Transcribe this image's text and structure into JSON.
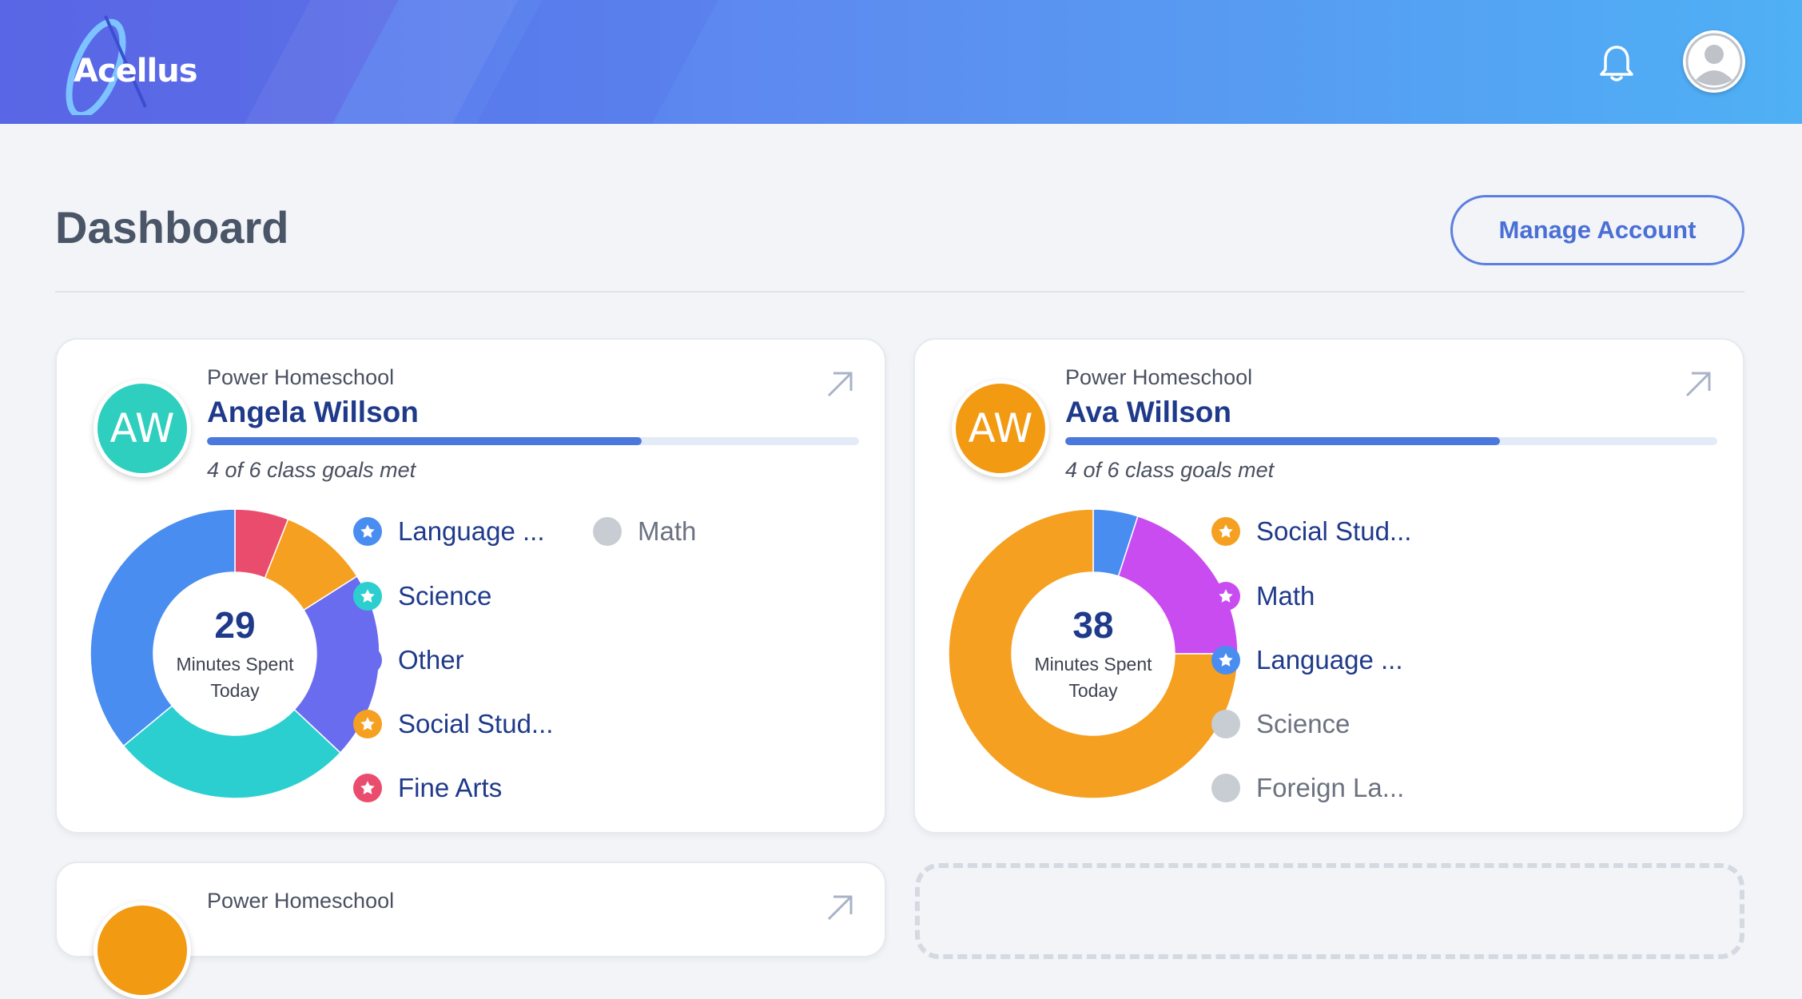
{
  "header": {
    "logo_text": "Acellus",
    "notifications_icon": "bell-icon",
    "user_icon": "user-avatar-icon",
    "colors": {
      "gradient_start": "#5a72ea",
      "gradient_end": "#4fb0f5"
    }
  },
  "page": {
    "title": "Dashboard",
    "manage_account_label": "Manage Account"
  },
  "cards": [
    {
      "school": "Power Homeschool",
      "initials": "AW",
      "avatar_color": "#2ecfbf",
      "name": "Angela Willson",
      "goals_text": "4 of 6 class goals met",
      "goal_progress": 0.667,
      "minutes": "29",
      "minutes_label_line1": "Minutes Spent",
      "minutes_label_line2": "Today",
      "legend": [
        {
          "label": "Language ...",
          "color": "#4a8df0",
          "icon": "star-icon"
        },
        {
          "label": "Math",
          "color": "#c8ccd3",
          "icon": "dot-icon",
          "muted": true
        },
        {
          "label": "Science",
          "color": "#2ccfd0",
          "icon": "star-icon"
        },
        {
          "label": "Other",
          "color": "#6a6cf0",
          "icon": "dot-icon"
        },
        {
          "label": "Social Stud...",
          "color": "#f5a020",
          "icon": "star-icon"
        },
        {
          "label": "Fine Arts",
          "color": "#ea4c6e",
          "icon": "star-icon"
        }
      ],
      "chart_data": {
        "type": "pie",
        "labels": [
          "Fine Arts",
          "Social Stud...",
          "Other",
          "Science",
          "Language ..."
        ],
        "values": [
          6,
          10,
          21,
          27,
          36
        ],
        "colors": [
          "#ea4c6e",
          "#f5a020",
          "#6a6cf0",
          "#2ccfd0",
          "#4a8df0"
        ],
        "center_value": 29
      }
    },
    {
      "school": "Power Homeschool",
      "initials": "AW",
      "avatar_color": "#f29a12",
      "name": "Ava Willson",
      "goals_text": "4 of 6 class goals met",
      "goal_progress": 0.667,
      "minutes": "38",
      "minutes_label_line1": "Minutes Spent",
      "minutes_label_line2": "Today",
      "legend": [
        {
          "label": "Social Stud...",
          "color": "#f5a020",
          "icon": "star-icon"
        },
        {
          "label": "Math",
          "color": "#c94cf0",
          "icon": "star-icon"
        },
        {
          "label": "Language ...",
          "color": "#4a8df0",
          "icon": "star-icon"
        },
        {
          "label": "Science",
          "color": "#c8ccd3",
          "icon": "dot-icon",
          "muted": true
        },
        {
          "label": "Foreign La...",
          "color": "#c8ccd3",
          "icon": "dot-icon",
          "muted": true
        }
      ],
      "chart_data": {
        "type": "pie",
        "labels": [
          "Language ...",
          "Math",
          "Social Stud..."
        ],
        "values": [
          5,
          20,
          75
        ],
        "colors": [
          "#4a8df0",
          "#c94cf0",
          "#f5a020"
        ],
        "center_value": 38
      }
    },
    {
      "school": "Power Homeschool",
      "avatar_color": "#f29a12"
    }
  ]
}
